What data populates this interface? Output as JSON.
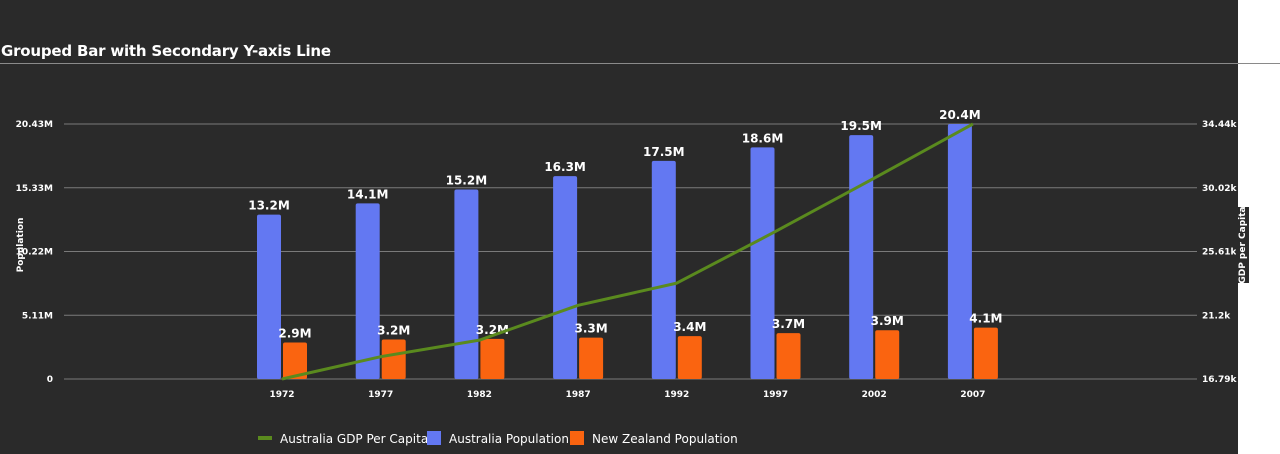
{
  "chart_data": {
    "type": "bar",
    "title": "Grouped Bar with Secondary Y-axis Line",
    "categories": [
      "1972",
      "1977",
      "1982",
      "1987",
      "1992",
      "1997",
      "2002",
      "2007"
    ],
    "series": [
      {
        "name": "Australia Population",
        "type": "bar",
        "axis": "left",
        "color": "#6378f2",
        "values": [
          13177000,
          14074100,
          15184200,
          16257249,
          17481977,
          18565243,
          19546792,
          20434176
        ],
        "labels": [
          "13.2M",
          "14.1M",
          "15.2M",
          "16.3M",
          "17.5M",
          "18.6M",
          "19.5M",
          "20.4M"
        ]
      },
      {
        "name": "New Zealand Population",
        "type": "bar",
        "axis": "left",
        "color": "#fa6410",
        "values": [
          2929100,
          3164900,
          3210650,
          3317166,
          3437674,
          3676187,
          3908037,
          4115771
        ],
        "labels": [
          "2.9M",
          "3.2M",
          "3.2M",
          "3.3M",
          "3.4M",
          "3.7M",
          "3.9M",
          "4.1M"
        ]
      },
      {
        "name": "Australia GDP Per Capita",
        "type": "line",
        "axis": "right",
        "color": "#5a8a1e",
        "values": [
          16788.63,
          18334.2,
          19477.01,
          21888.89,
          23424.77,
          26997.94,
          30687.75,
          34435.37
        ]
      }
    ],
    "left_axis": {
      "label": "Population",
      "range": [
        0,
        20434176
      ],
      "tick_values": [
        0,
        5108544,
        10217088,
        15325632,
        20434176
      ],
      "tick_labels": [
        "0",
        "5.11M",
        "10.22M",
        "15.33M",
        "20.43M"
      ]
    },
    "right_axis": {
      "label": "GDP per Capita",
      "range": [
        16788.63,
        34435.37
      ],
      "tick_values": [
        16788.63,
        21200.31,
        25612.0,
        30023.68,
        34435.37
      ],
      "tick_labels": [
        "16.79k",
        "21.2k",
        "25.61k",
        "30.02k",
        "34.44k"
      ]
    },
    "legend": {
      "position": "bottom",
      "order": [
        "Australia GDP Per Capita",
        "Australia Population",
        "New Zealand Population"
      ]
    },
    "grid": true
  }
}
